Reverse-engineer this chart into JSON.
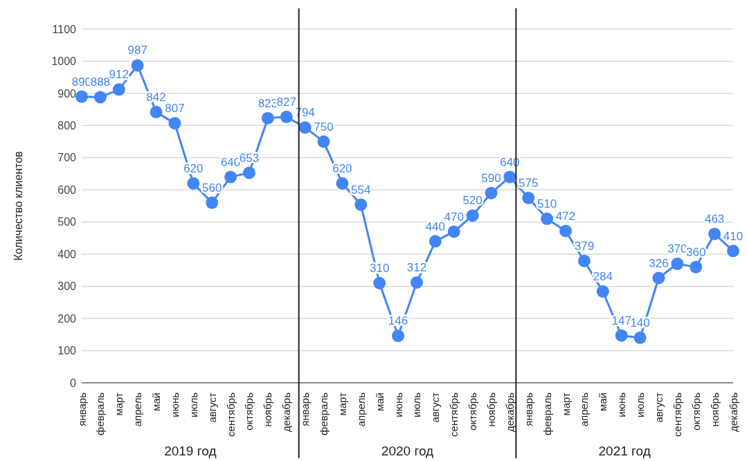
{
  "chart_data": {
    "type": "line",
    "ylabel": "Количество клиентов",
    "categories": [
      "январь",
      "февраль",
      "март",
      "апрель",
      "май",
      "июнь",
      "июль",
      "август",
      "сентябрь",
      "октябрь",
      "ноябрь",
      "декабрь",
      "январь",
      "февраль",
      "март",
      "апрель",
      "май",
      "июнь",
      "июль",
      "август",
      "сентябрь",
      "октябрь",
      "ноябрь",
      "декабрь",
      "январь",
      "февраль",
      "март",
      "апрель",
      "май",
      "июнь",
      "июль",
      "август",
      "сентябрь",
      "октябрь",
      "ноябрь",
      "декабрь"
    ],
    "series": [
      {
        "color": "#4285f4",
        "values": [
          890,
          888,
          912,
          987,
          842,
          807,
          620,
          560,
          640,
          653,
          823,
          827,
          794,
          750,
          620,
          554,
          310,
          146,
          312,
          440,
          470,
          520,
          590,
          640,
          575,
          510,
          472,
          379,
          284,
          147,
          140,
          326,
          370,
          360,
          463,
          410
        ]
      }
    ],
    "ylim": [
      0,
      1100
    ],
    "yticks": [
      0,
      100,
      200,
      300,
      400,
      500,
      600,
      700,
      800,
      900,
      1000,
      1100
    ],
    "grid": "y",
    "marker": "circle",
    "line_style": "solid",
    "data_labels": true,
    "annotations": [
      "2019 год",
      "2020 год",
      "2021 год"
    ]
  }
}
